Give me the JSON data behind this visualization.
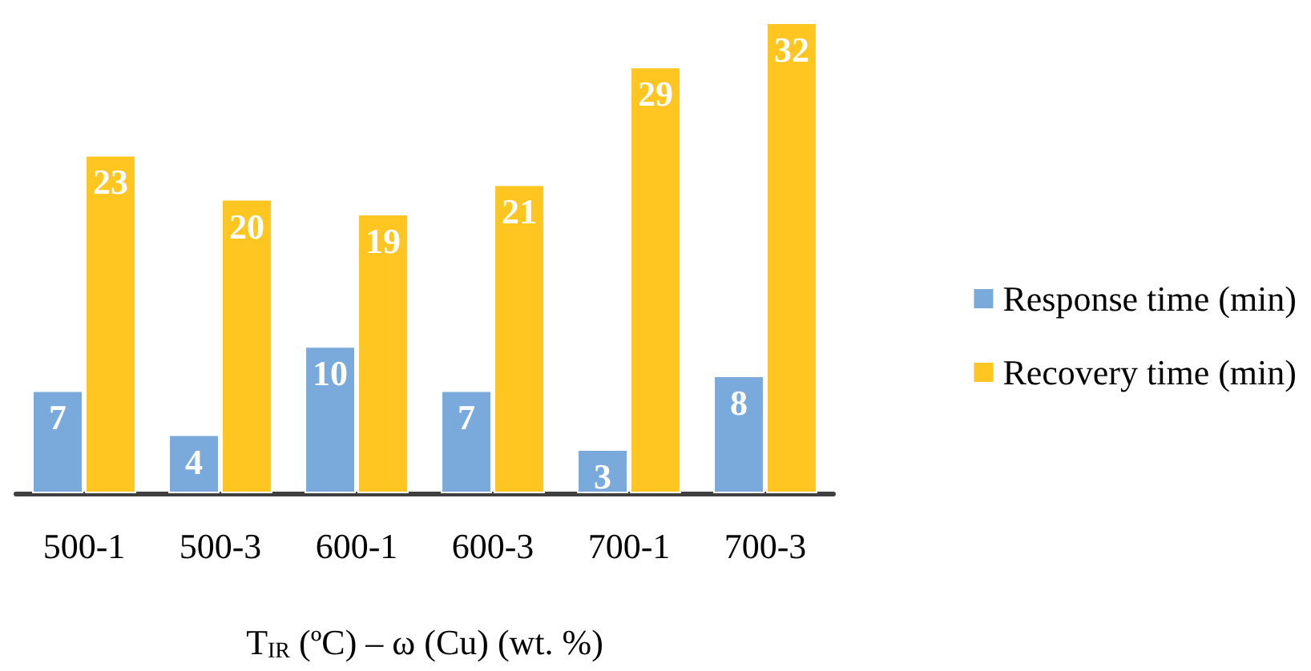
{
  "chart_data": {
    "type": "bar",
    "xlabel": "T$_{IR}$ (ºC) – ω (Cu) (wt. %)",
    "categories": [
      "500-1",
      "500-3",
      "600-1",
      "600-3",
      "700-1",
      "700-3"
    ],
    "series": [
      {
        "name": "Response time (min)",
        "color": "#7aaadc",
        "values": [
          7,
          4,
          10,
          7,
          3,
          8
        ]
      },
      {
        "name": "Recovery time (min)",
        "color": "#ffc622",
        "values": [
          23,
          20,
          19,
          21,
          29,
          32
        ]
      }
    ],
    "data_labels": true,
    "legend": "right"
  }
}
